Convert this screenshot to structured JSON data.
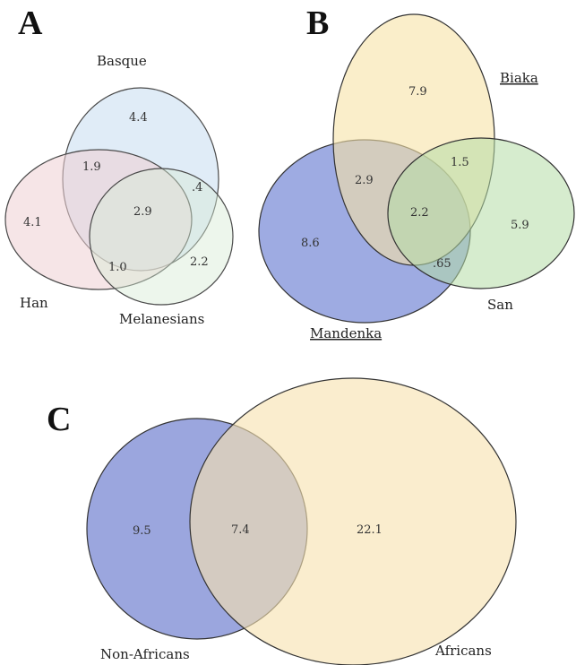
{
  "panels": {
    "a": {
      "label": "A",
      "sets": {
        "basque": "Basque",
        "han": "Han",
        "melanesians": "Melanesians"
      },
      "regions": {
        "basque_only": "4.4",
        "han_only": "4.1",
        "melanesians_only": "2.2",
        "basque_han": "1.9",
        "basque_melanesians": ".4",
        "han_melanesians": "1.0",
        "all": "2.9"
      },
      "colors": {
        "basque": "#c6dcf0",
        "han": "#efcfd4",
        "melanesians": "#d6ecd4",
        "stroke": "#4a4a4a"
      }
    },
    "b": {
      "label": "B",
      "sets": {
        "biaka": "Biaka",
        "mandenka": "Mandenka",
        "san": "San"
      },
      "regions": {
        "biaka_only": "7.9",
        "mandenka_only": "8.6",
        "san_only": "5.9",
        "biaka_mandenka": "2.9",
        "biaka_san": "1.5",
        "mandenka_san": ".65",
        "all": "2.2"
      },
      "colors": {
        "biaka": "#f7e2a6",
        "mandenka": "#7e8fd8",
        "san": "#b4dca6",
        "stroke": "#333333"
      }
    },
    "c": {
      "label": "C",
      "sets": {
        "non_africans": "Non-Africans",
        "africans": "Africans"
      },
      "regions": {
        "non_africans_only": "9.5",
        "shared": "7.4",
        "africans_only": "22.1"
      },
      "colors": {
        "non_africans": "#8290d6",
        "africans": "#f7e2b0",
        "stroke": "#333333"
      }
    }
  }
}
